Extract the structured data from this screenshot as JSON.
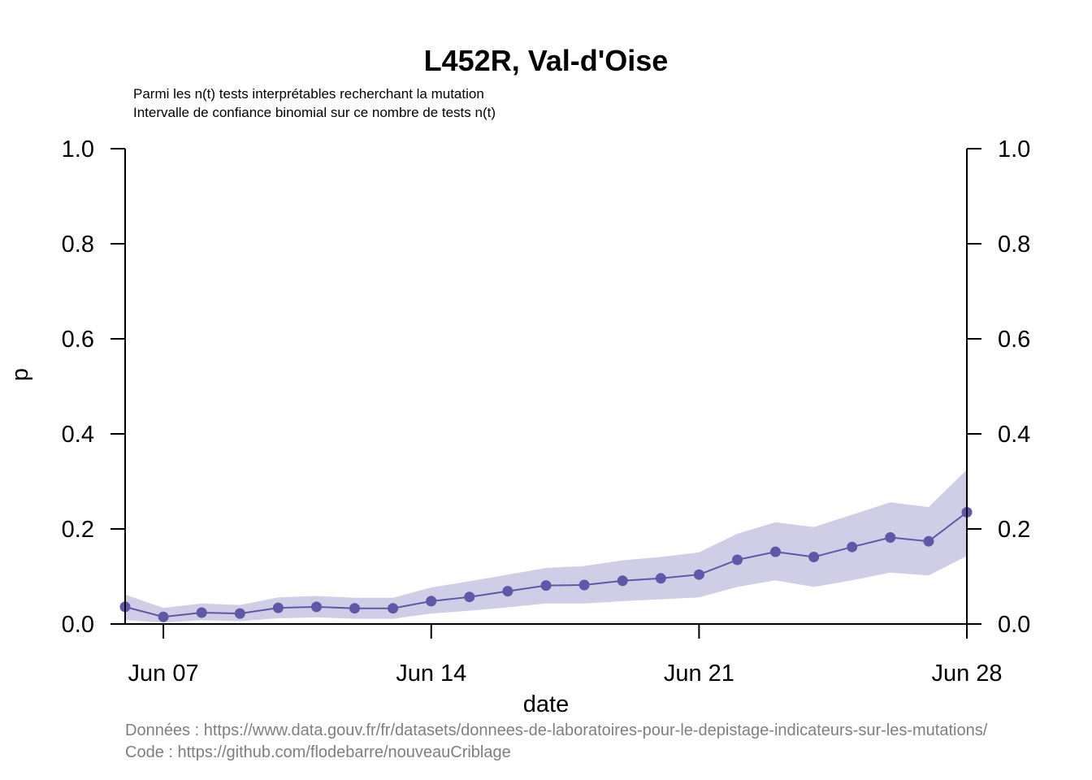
{
  "title": "L452R, Val-d'Oise",
  "subtitle_lines": [
    "Parmi les n(t) tests interprétables recherchant la mutation",
    "Intervalle de confiance binomial sur ce nombre de tests n(t)"
  ],
  "footer": {
    "data_source": "Données : https://www.data.gouv.fr/fr/datasets/donnees-de-laboratoires-pour-le-depistage-indicateurs-sur-les-mutations/",
    "code_source": "Code : https://github.com/flodebarre/nouveauCriblage"
  },
  "colors": {
    "series": "#6057a8",
    "ci_band": "#d0cee6",
    "axis": "#000000",
    "footer_text": "#7f7f7f"
  },
  "chart_data": {
    "type": "line",
    "xlabel": "date",
    "ylabel": "p",
    "ylim": [
      0,
      1
    ],
    "y_ticks": [
      "0.0",
      "0.2",
      "0.4",
      "0.6",
      "0.8",
      "1.0"
    ],
    "secondary_y_axis": true,
    "x_ticks": [
      "Jun 07",
      "Jun 14",
      "Jun 21",
      "Jun 28"
    ],
    "x_tick_dates": [
      "2021-06-07",
      "2021-06-14",
      "2021-06-21",
      "2021-06-28"
    ],
    "xlim": [
      "2021-06-06",
      "2021-06-28"
    ],
    "grid": false,
    "series": [
      {
        "x": [
          "2021-06-06",
          "2021-06-07",
          "2021-06-08",
          "2021-06-09",
          "2021-06-10",
          "2021-06-11",
          "2021-06-12",
          "2021-06-13",
          "2021-06-14",
          "2021-06-15",
          "2021-06-16",
          "2021-06-17",
          "2021-06-18",
          "2021-06-19",
          "2021-06-20",
          "2021-06-21",
          "2021-06-22",
          "2021-06-23",
          "2021-06-24",
          "2021-06-25",
          "2021-06-26",
          "2021-06-27",
          "2021-06-28"
        ],
        "values": [
          0.036,
          0.015,
          0.024,
          0.022,
          0.034,
          0.036,
          0.033,
          0.033,
          0.048,
          0.057,
          0.069,
          0.081,
          0.082,
          0.091,
          0.096,
          0.104,
          0.135,
          0.152,
          0.141,
          0.162,
          0.182,
          0.174,
          0.235
        ],
        "ci_lower": [
          0.008,
          0.003,
          0.008,
          0.006,
          0.012,
          0.014,
          0.011,
          0.011,
          0.022,
          0.028,
          0.035,
          0.043,
          0.043,
          0.048,
          0.052,
          0.056,
          0.078,
          0.092,
          0.078,
          0.092,
          0.108,
          0.102,
          0.143
        ],
        "ci_upper": [
          0.062,
          0.034,
          0.043,
          0.04,
          0.056,
          0.059,
          0.055,
          0.055,
          0.077,
          0.09,
          0.104,
          0.118,
          0.122,
          0.134,
          0.141,
          0.151,
          0.19,
          0.214,
          0.204,
          0.23,
          0.256,
          0.246,
          0.325
        ]
      }
    ]
  }
}
